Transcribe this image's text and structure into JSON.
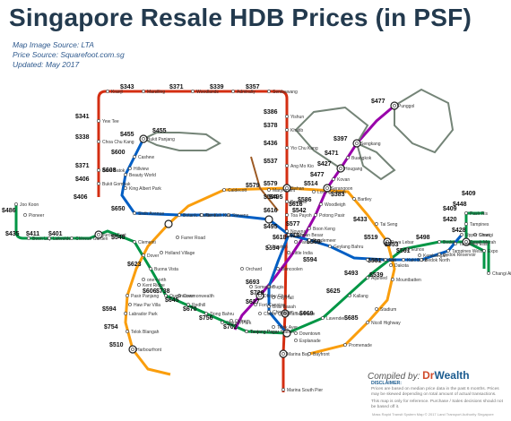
{
  "title": "Singapore Resale HDB Prices (in PSF)",
  "sources": {
    "map_image": "Map Image Source:  LTA",
    "price": "Price Source: Squarefoot.com.sg",
    "updated": "Updated: May 2017"
  },
  "credit": {
    "prefix": "Compiled by: ",
    "brand_a": "Dr",
    "brand_b": "Wealth"
  },
  "disclaimer": {
    "heading": "DISCLAIMER:",
    "text": "Prices are based on median price data in the past 6 months. Prices may be skewed depending on total amount of actual transactions.",
    "text2": "This map is only for reference. Purchase / Sales decisions should not be based off it."
  },
  "footer": "Mass Rapid Transit System Map © 2017 Land Transport Authority Singapore",
  "colors": {
    "ns_line": "#d42e12",
    "ew_line": "#009645",
    "ne_line": "#9900aa",
    "cc_line": "#fa9e0d",
    "dt_line": "#005ec4",
    "lrt": "#748477",
    "te_line": "#9d5b25"
  },
  "stations": [
    {
      "name": "Joo Koon",
      "price": ""
    },
    {
      "name": "Pioneer",
      "price": "$486"
    },
    {
      "name": "Boon Lay",
      "price": "$435"
    },
    {
      "name": "Lakeside",
      "price": "$411"
    },
    {
      "name": "Chinese Garden",
      "price": "$401"
    },
    {
      "name": "Jurong East",
      "price": ""
    },
    {
      "name": "Clementi",
      "price": "$548"
    },
    {
      "name": "Dover",
      "price": ""
    },
    {
      "name": "Buona Vista",
      "price": "$623"
    },
    {
      "name": "Commonwealth",
      "price": "$738"
    },
    {
      "name": "Queenstown",
      "price": "$606"
    },
    {
      "name": "Redhill",
      "price": "$645"
    },
    {
      "name": "Tiong Bahru",
      "price": "$670"
    },
    {
      "name": "Outram Park",
      "price": "$756"
    },
    {
      "name": "Tanjong Pagar",
      "price": "$702"
    },
    {
      "name": "Raffles Place",
      "price": ""
    },
    {
      "name": "City Hall",
      "price": "$720"
    },
    {
      "name": "Bugis",
      "price": "$693"
    },
    {
      "name": "Lavender",
      "price": "$669"
    },
    {
      "name": "Kallang",
      "price": "$625"
    },
    {
      "name": "Aljunied",
      "price": "$493"
    },
    {
      "name": "Paya Lebar",
      "price": "$519"
    },
    {
      "name": "Eunos",
      "price": "$553"
    },
    {
      "name": "Kembangan",
      "price": "$561"
    },
    {
      "name": "Bedok",
      "price": "$498"
    },
    {
      "name": "Tanah Merah",
      "price": ""
    },
    {
      "name": "Simei",
      "price": "$428"
    },
    {
      "name": "Tampines",
      "price": "$420"
    },
    {
      "name": "Pasir Ris",
      "price": "$409"
    },
    {
      "name": "Expo",
      "price": ""
    },
    {
      "name": "Changi Airport",
      "price": ""
    },
    {
      "name": "Bukit Batok",
      "price": "$371"
    },
    {
      "name": "Bukit Gombak",
      "price": "$406"
    },
    {
      "name": "Choa Chu Kang",
      "price": "$338"
    },
    {
      "name": "Yew Tee",
      "price": "$341"
    },
    {
      "name": "Kranji",
      "price": ""
    },
    {
      "name": "Marsiling",
      "price": "$343"
    },
    {
      "name": "Woodlands",
      "price": "$371"
    },
    {
      "name": "Admiralty",
      "price": "$339"
    },
    {
      "name": "Sembawang",
      "price": "$357"
    },
    {
      "name": "Yishun",
      "price": "$386"
    },
    {
      "name": "Khatib",
      "price": "$378"
    },
    {
      "name": "Yio Chu Kang",
      "price": "$436"
    },
    {
      "name": "Ang Mo Kio",
      "price": "$537"
    },
    {
      "name": "Bishan",
      "price": "$579"
    },
    {
      "name": "Braddell",
      "price": "$594"
    },
    {
      "name": "Toa Payoh",
      "price": "$616"
    },
    {
      "name": "Novena",
      "price": "$495"
    },
    {
      "name": "Marymount",
      "price": "$579"
    },
    {
      "name": "Bukit Panjang",
      "price": "$455"
    },
    {
      "name": "Cashew",
      "price": "$600"
    },
    {
      "name": "Hillview",
      "price": ""
    },
    {
      "name": "Beauty World",
      "price": "$608"
    },
    {
      "name": "Sixth Avenue",
      "price": "$650"
    },
    {
      "name": "Punggol",
      "price": "$477"
    },
    {
      "name": "Sengkang",
      "price": "$397"
    },
    {
      "name": "Buangkok",
      "price": "$471"
    },
    {
      "name": "Hougang",
      "price": "$427"
    },
    {
      "name": "Kovan",
      "price": "$477"
    },
    {
      "name": "Serangoon",
      "price": "$514"
    },
    {
      "name": "Woodleigh",
      "price": "$586"
    },
    {
      "name": "Potong Pasir",
      "price": "$542"
    },
    {
      "name": "Boon Keng",
      "price": "$577"
    },
    {
      "name": "Farrer Park",
      "price": "$618"
    },
    {
      "name": "Little India",
      "price": "$594"
    },
    {
      "name": "Bartley",
      "price": "$383"
    },
    {
      "name": "Tai Seng",
      "price": "$433"
    },
    {
      "name": "Mountbatten",
      "price": "$539"
    },
    {
      "name": "Dakota",
      "price": "$581"
    },
    {
      "name": "Nicoll Highway",
      "price": "$685"
    },
    {
      "name": "Bras Basah",
      "price": "$627"
    },
    {
      "name": "Harbourfront",
      "price": "$510"
    },
    {
      "name": "Telok Blangah",
      "price": "$754"
    },
    {
      "name": "Labrador Park",
      "price": "$594"
    },
    {
      "name": "Pasir Panjang",
      "price": ""
    },
    {
      "name": "Marina Bay",
      "price": ""
    },
    {
      "name": "Marina South Pier",
      "price": ""
    },
    {
      "name": "Bayfront",
      "price": ""
    },
    {
      "name": "Esplanade",
      "price": ""
    },
    {
      "name": "Promenade",
      "price": ""
    },
    {
      "name": "Stadium",
      "price": ""
    },
    {
      "name": "Geylang Bahru",
      "price": "$569"
    },
    {
      "name": "Bendemeer",
      "price": "$625"
    },
    {
      "name": "Jalan Besar",
      "price": ""
    },
    {
      "name": "Rochor",
      "price": ""
    },
    {
      "name": "Downtown",
      "price": ""
    },
    {
      "name": "Telok Ayer",
      "price": ""
    },
    {
      "name": "Chinatown",
      "price": ""
    },
    {
      "name": "Fort Canning",
      "price": ""
    },
    {
      "name": "Bencoolen",
      "price": ""
    },
    {
      "name": "Orchard",
      "price": ""
    },
    {
      "name": "Newton",
      "price": ""
    },
    {
      "name": "Stevens",
      "price": ""
    },
    {
      "name": "Botanic Gardens",
      "price": ""
    },
    {
      "name": "Tan Kah Kee",
      "price": ""
    },
    {
      "name": "Farrer Road",
      "price": ""
    },
    {
      "name": "Holland Village",
      "price": ""
    },
    {
      "name": "one-north",
      "price": ""
    },
    {
      "name": "Kent Ridge",
      "price": ""
    },
    {
      "name": "Haw Par Villa",
      "price": ""
    },
    {
      "name": "Caldecott",
      "price": ""
    },
    {
      "name": "Lorong Chuan",
      "price": ""
    },
    {
      "name": "MacPherson",
      "price": ""
    },
    {
      "name": "Ubi",
      "price": ""
    },
    {
      "name": "Kaki Bukit",
      "price": ""
    },
    {
      "name": "Bedok North",
      "price": ""
    },
    {
      "name": "Bedok Reservoir",
      "price": ""
    },
    {
      "name": "Tampines West",
      "price": ""
    },
    {
      "name": "Tampines East",
      "price": ""
    },
    {
      "name": "Upper Changi",
      "price": ""
    },
    {
      "name": "King Albert Park",
      "price": ""
    },
    {
      "name": "Tanjong Pagar Station",
      "price": ""
    },
    {
      "name": "Clarke Quay",
      "price": ""
    },
    {
      "name": "Dhoby Ghaut",
      "price": ""
    },
    {
      "name": "Somerset",
      "price": ""
    },
    {
      "name": "Outram",
      "price": ""
    }
  ],
  "extra_prices": [
    "$455",
    "$406",
    "$409",
    "$448",
    "$594",
    "$616",
    "$495"
  ]
}
